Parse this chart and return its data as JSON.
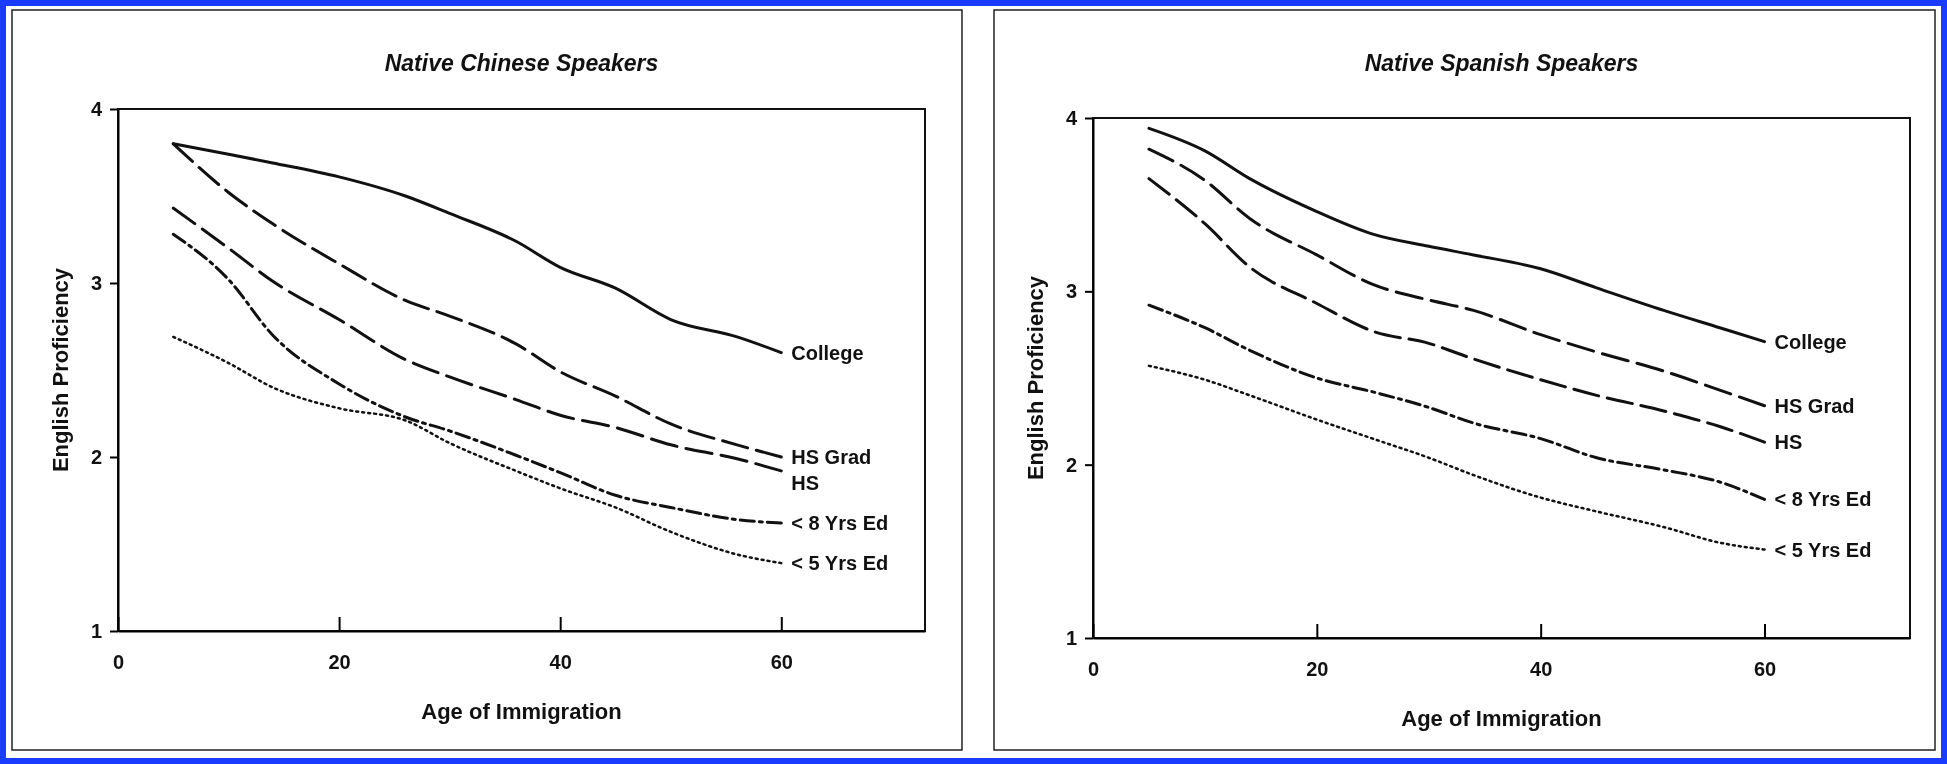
{
  "chart_data": [
    {
      "type": "line",
      "title": "Native Chinese Speakers",
      "xlabel": "Age of Immigration",
      "ylabel": "English Proficiency",
      "xlim": [
        0,
        73
      ],
      "xticks": [
        0,
        20,
        40,
        60
      ],
      "ylim": [
        1,
        4
      ],
      "yticks": [
        1,
        2,
        3,
        4
      ],
      "grid": false,
      "legend": false,
      "marker": "none",
      "series": [
        {
          "name": "College",
          "color": "#111111",
          "line_style": "solid",
          "x": [
            5,
            10,
            14,
            20,
            26,
            30,
            36,
            40,
            45,
            50,
            56,
            60
          ],
          "values": [
            3.8,
            3.74,
            3.69,
            3.61,
            3.5,
            3.4,
            3.24,
            3.09,
            2.97,
            2.79,
            2.69,
            2.6
          ]
        },
        {
          "name": "HS Grad",
          "color": "#111111",
          "line_style": "dashed",
          "x": [
            5,
            10,
            14,
            20,
            26,
            30,
            36,
            40,
            45,
            50,
            56,
            60
          ],
          "values": [
            3.8,
            3.52,
            3.34,
            3.11,
            2.9,
            2.81,
            2.65,
            2.49,
            2.35,
            2.19,
            2.07,
            2.0
          ]
        },
        {
          "name": "HS",
          "color": "#111111",
          "line_style": "dashed",
          "x": [
            5,
            10,
            14,
            20,
            26,
            30,
            36,
            40,
            45,
            50,
            56,
            60
          ],
          "values": [
            3.43,
            3.2,
            3.01,
            2.79,
            2.56,
            2.46,
            2.33,
            2.24,
            2.17,
            2.07,
            1.99,
            1.92
          ]
        },
        {
          "name": "< 8 Yrs Ed",
          "color": "#111111",
          "line_style": "dashdot",
          "x": [
            5,
            10,
            14,
            20,
            26,
            30,
            36,
            40,
            45,
            50,
            56,
            60
          ],
          "values": [
            3.28,
            3.02,
            2.7,
            2.42,
            2.23,
            2.15,
            2.01,
            1.91,
            1.78,
            1.71,
            1.64,
            1.62
          ]
        },
        {
          "name": "< 5 Yrs Ed",
          "color": "#111111",
          "line_style": "dotted",
          "x": [
            5,
            10,
            14,
            20,
            26,
            30,
            36,
            40,
            45,
            50,
            56,
            60
          ],
          "values": [
            2.69,
            2.54,
            2.4,
            2.28,
            2.21,
            2.08,
            1.92,
            1.82,
            1.71,
            1.57,
            1.44,
            1.39
          ]
        }
      ]
    },
    {
      "type": "line",
      "title": "Native Spanish Speakers",
      "xlabel": "Age of Immigration",
      "ylabel": "English Proficiency",
      "xlim": [
        0,
        73
      ],
      "xticks": [
        0,
        20,
        40,
        60
      ],
      "ylim": [
        1,
        4
      ],
      "yticks": [
        1,
        2,
        3,
        4
      ],
      "grid": false,
      "legend": false,
      "marker": "none",
      "series": [
        {
          "name": "College",
          "color": "#111111",
          "line_style": "solid",
          "x": [
            5,
            10,
            14,
            20,
            25,
            30,
            34,
            40,
            45,
            51,
            56,
            60
          ],
          "values": [
            3.94,
            3.81,
            3.65,
            3.46,
            3.33,
            3.26,
            3.21,
            3.13,
            3.02,
            2.89,
            2.79,
            2.71
          ]
        },
        {
          "name": "HS Grad",
          "color": "#111111",
          "line_style": "dashed",
          "x": [
            5,
            10,
            14,
            20,
            25,
            30,
            34,
            40,
            45,
            51,
            56,
            60
          ],
          "values": [
            3.82,
            3.64,
            3.42,
            3.21,
            3.04,
            2.95,
            2.89,
            2.75,
            2.65,
            2.54,
            2.43,
            2.34
          ]
        },
        {
          "name": "HS",
          "color": "#111111",
          "line_style": "dashed",
          "x": [
            5,
            10,
            14,
            20,
            25,
            30,
            34,
            40,
            45,
            51,
            56,
            60
          ],
          "values": [
            3.65,
            3.39,
            3.14,
            2.93,
            2.77,
            2.7,
            2.61,
            2.49,
            2.4,
            2.31,
            2.22,
            2.13
          ]
        },
        {
          "name": "< 8 Yrs Ed",
          "color": "#111111",
          "line_style": "dashdot",
          "x": [
            5,
            10,
            14,
            20,
            25,
            30,
            34,
            40,
            45,
            51,
            56,
            60
          ],
          "values": [
            2.92,
            2.79,
            2.66,
            2.5,
            2.42,
            2.33,
            2.24,
            2.15,
            2.04,
            1.97,
            1.9,
            1.8
          ]
        },
        {
          "name": "< 5 Yrs Ed",
          "color": "#111111",
          "line_style": "dotted",
          "x": [
            5,
            10,
            14,
            20,
            25,
            30,
            34,
            40,
            45,
            51,
            56,
            60
          ],
          "values": [
            2.57,
            2.49,
            2.4,
            2.26,
            2.15,
            2.04,
            1.94,
            1.81,
            1.73,
            1.64,
            1.55,
            1.51
          ]
        }
      ]
    }
  ]
}
